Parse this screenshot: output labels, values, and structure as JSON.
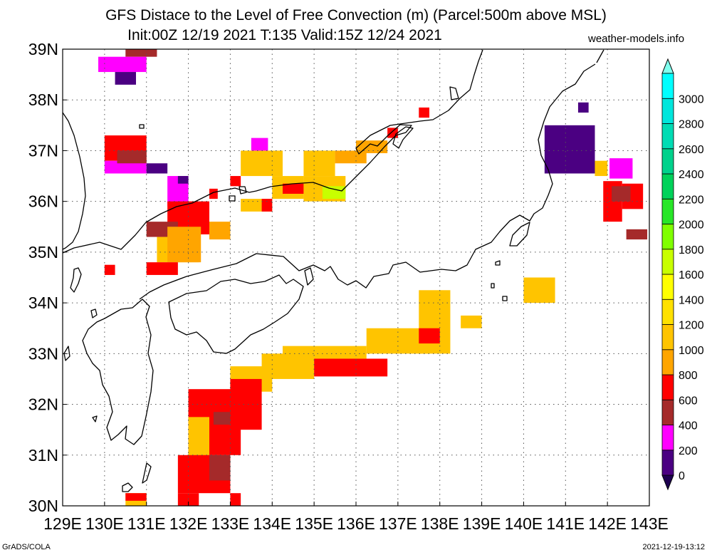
{
  "header": {
    "title_line1": "GFS Distace to the Level of Free Convection (m) (Parcel:500m above MSL)",
    "title_line2": "Init:00Z 12/19 2021 T:135 Valid:15Z 12/24 2021",
    "credit": "weather-models.info"
  },
  "footer": {
    "left": "GrADS/COLA",
    "right": "2021-12-19-13:12"
  },
  "map": {
    "lon_range": [
      129,
      143
    ],
    "lat_range": [
      30,
      39
    ],
    "lon_labels": [
      "129E",
      "130E",
      "131E",
      "132E",
      "133E",
      "134E",
      "135E",
      "136E",
      "137E",
      "138E",
      "139E",
      "140E",
      "141E",
      "142E",
      "143E"
    ],
    "lat_labels": [
      "30N",
      "31N",
      "32N",
      "33N",
      "34N",
      "35N",
      "36N",
      "37N",
      "38N",
      "39N"
    ],
    "grid": "dotted",
    "coastline_color": "#000000"
  },
  "colorbar": {
    "levels": [
      "0",
      "200",
      "400",
      "600",
      "800",
      "1000",
      "1200",
      "1400",
      "1600",
      "1800",
      "2000",
      "2200",
      "2400",
      "2600",
      "2800",
      "3000"
    ],
    "colors": [
      "#4b0082",
      "#ff00ff",
      "#a52a2a",
      "#ff0000",
      "#ffa500",
      "#ffc400",
      "#ffe100",
      "#ffff00",
      "#c8ff00",
      "#80ff00",
      "#28e628",
      "#00d25a",
      "#00d28c",
      "#00dcb4",
      "#00e6dc",
      "#00ffff"
    ],
    "under_color": "#1e0050",
    "over_color": "#80ffee"
  },
  "field": {
    "units": "m",
    "patches": [
      {
        "lon": [
          130.5,
          131.25
        ],
        "lat": [
          38.85,
          39.05
        ],
        "level": "400"
      },
      {
        "lon": [
          129.85,
          131.0
        ],
        "lat": [
          38.55,
          38.85
        ],
        "level": "200"
      },
      {
        "lon": [
          130.25,
          130.75
        ],
        "lat": [
          38.3,
          38.55
        ],
        "level": "0"
      },
      {
        "lon": [
          140.5,
          141.7
        ],
        "lat": [
          36.55,
          37.5
        ],
        "level": "0"
      },
      {
        "lon": [
          141.3,
          141.55
        ],
        "lat": [
          37.75,
          37.95
        ],
        "level": "0"
      },
      {
        "lon": [
          142.05,
          142.6
        ],
        "lat": [
          36.45,
          36.85
        ],
        "level": "200"
      },
      {
        "lon": [
          141.9,
          142.35
        ],
        "lat": [
          35.6,
          36.4
        ],
        "level": "600"
      },
      {
        "lon": [
          142.35,
          142.85
        ],
        "lat": [
          35.85,
          36.35
        ],
        "level": "600"
      },
      {
        "lon": [
          142.1,
          142.55
        ],
        "lat": [
          36.0,
          36.3
        ],
        "level": "400"
      },
      {
        "lon": [
          142.45,
          142.95
        ],
        "lat": [
          35.25,
          35.45
        ],
        "level": "400"
      },
      {
        "lon": [
          141.7,
          142.0
        ],
        "lat": [
          36.5,
          36.8
        ],
        "level": "1000"
      },
      {
        "lon": [
          130.0,
          131.0
        ],
        "lat": [
          36.8,
          37.3
        ],
        "level": "600"
      },
      {
        "lon": [
          130.0,
          131.0
        ],
        "lat": [
          36.55,
          36.8
        ],
        "level": "200"
      },
      {
        "lon": [
          130.3,
          131.0
        ],
        "lat": [
          36.75,
          37.0
        ],
        "level": "400"
      },
      {
        "lon": [
          131.0,
          131.5
        ],
        "lat": [
          36.55,
          36.75
        ],
        "level": "0"
      },
      {
        "lon": [
          131.5,
          132.0
        ],
        "lat": [
          35.9,
          36.5
        ],
        "level": "200"
      },
      {
        "lon": [
          131.75,
          132.0
        ],
        "lat": [
          36.35,
          36.5
        ],
        "level": "0"
      },
      {
        "lon": [
          131.5,
          132.5
        ],
        "lat": [
          35.35,
          36.0
        ],
        "level": "600"
      },
      {
        "lon": [
          131.0,
          131.75
        ],
        "lat": [
          35.3,
          35.6
        ],
        "level": "400"
      },
      {
        "lon": [
          131.25,
          132.25
        ],
        "lat": [
          34.8,
          35.3
        ],
        "level": "1000"
      },
      {
        "lon": [
          131.5,
          132.3
        ],
        "lat": [
          34.8,
          35.5
        ],
        "level": "800"
      },
      {
        "lon": [
          131.0,
          131.75
        ],
        "lat": [
          34.55,
          34.8
        ],
        "level": "600"
      },
      {
        "lon": [
          130.0,
          130.25
        ],
        "lat": [
          34.55,
          34.75
        ],
        "level": "600"
      },
      {
        "lon": [
          132.5,
          132.7
        ],
        "lat": [
          36.05,
          36.25
        ],
        "level": "600"
      },
      {
        "lon": [
          132.5,
          133.0
        ],
        "lat": [
          35.25,
          35.6
        ],
        "level": "800"
      },
      {
        "lon": [
          133.0,
          133.25
        ],
        "lat": [
          36.3,
          36.5
        ],
        "level": "600"
      },
      {
        "lon": [
          133.5,
          133.9
        ],
        "lat": [
          37.0,
          37.25
        ],
        "level": "200"
      },
      {
        "lon": [
          133.25,
          134.25
        ],
        "lat": [
          36.5,
          37.0
        ],
        "level": "1000"
      },
      {
        "lon": [
          133.25,
          134.0
        ],
        "lat": [
          35.8,
          36.05
        ],
        "level": "1000"
      },
      {
        "lon": [
          133.75,
          134.0
        ],
        "lat": [
          35.8,
          36.05
        ],
        "level": "600"
      },
      {
        "lon": [
          134.0,
          134.75
        ],
        "lat": [
          36.05,
          36.5
        ],
        "level": "1000"
      },
      {
        "lon": [
          134.25,
          134.75
        ],
        "lat": [
          36.15,
          36.35
        ],
        "level": "600"
      },
      {
        "lon": [
          134.75,
          135.5
        ],
        "lat": [
          36.5,
          37.0
        ],
        "level": "1000"
      },
      {
        "lon": [
          134.75,
          135.75
        ],
        "lat": [
          36.0,
          36.5
        ],
        "level": "1000"
      },
      {
        "lon": [
          135.2,
          135.75
        ],
        "lat": [
          36.05,
          36.3
        ],
        "level": "1600"
      },
      {
        "lon": [
          135.5,
          136.25
        ],
        "lat": [
          36.75,
          37.0
        ],
        "level": "800"
      },
      {
        "lon": [
          136.0,
          136.75
        ],
        "lat": [
          36.95,
          37.2
        ],
        "level": "800"
      },
      {
        "lon": [
          136.75,
          137.0
        ],
        "lat": [
          37.25,
          37.45
        ],
        "level": "600"
      },
      {
        "lon": [
          137.5,
          137.75
        ],
        "lat": [
          37.65,
          37.85
        ],
        "level": "600"
      },
      {
        "lon": [
          133.0,
          134.0
        ],
        "lat": [
          32.25,
          32.75
        ],
        "level": "1000"
      },
      {
        "lon": [
          133.75,
          135.0
        ],
        "lat": [
          32.5,
          33.0
        ],
        "level": "1000"
      },
      {
        "lon": [
          134.25,
          136.25
        ],
        "lat": [
          32.9,
          33.15
        ],
        "level": "1000"
      },
      {
        "lon": [
          135.0,
          136.0
        ],
        "lat": [
          32.55,
          32.9
        ],
        "level": "600"
      },
      {
        "lon": [
          136.0,
          136.75
        ],
        "lat": [
          32.55,
          32.9
        ],
        "level": "600"
      },
      {
        "lon": [
          136.25,
          137.75
        ],
        "lat": [
          33.0,
          33.5
        ],
        "level": "1000"
      },
      {
        "lon": [
          137.5,
          138.25
        ],
        "lat": [
          33.0,
          34.25
        ],
        "level": "1000"
      },
      {
        "lon": [
          137.5,
          138.0
        ],
        "lat": [
          33.2,
          33.5
        ],
        "level": "600"
      },
      {
        "lon": [
          138.5,
          139.0
        ],
        "lat": [
          33.5,
          33.75
        ],
        "level": "1000"
      },
      {
        "lon": [
          140.0,
          140.75
        ],
        "lat": [
          34.0,
          34.5
        ],
        "level": "1000"
      },
      {
        "lon": [
          132.0,
          133.25
        ],
        "lat": [
          31.0,
          32.3
        ],
        "level": "600"
      },
      {
        "lon": [
          133.0,
          133.75
        ],
        "lat": [
          31.5,
          32.5
        ],
        "level": "600"
      },
      {
        "lon": [
          132.0,
          132.5
        ],
        "lat": [
          30.8,
          31.75
        ],
        "level": "1000"
      },
      {
        "lon": [
          131.75,
          133.0
        ],
        "lat": [
          30.25,
          31.0
        ],
        "level": "600"
      },
      {
        "lon": [
          131.75,
          132.25
        ],
        "lat": [
          30.0,
          30.25
        ],
        "level": "600"
      },
      {
        "lon": [
          133.0,
          133.25
        ],
        "lat": [
          30.0,
          30.25
        ],
        "level": "600"
      },
      {
        "lon": [
          132.5,
          133.0
        ],
        "lat": [
          30.5,
          31.0
        ],
        "level": "400"
      },
      {
        "lon": [
          132.6,
          133.0
        ],
        "lat": [
          31.6,
          31.85
        ],
        "level": "400"
      },
      {
        "lon": [
          130.5,
          131.0
        ],
        "lat": [
          30.0,
          30.25
        ],
        "level": "1000"
      },
      {
        "lon": [
          130.5,
          131.0
        ],
        "lat": [
          30.1,
          30.25
        ],
        "level": "600"
      }
    ]
  }
}
